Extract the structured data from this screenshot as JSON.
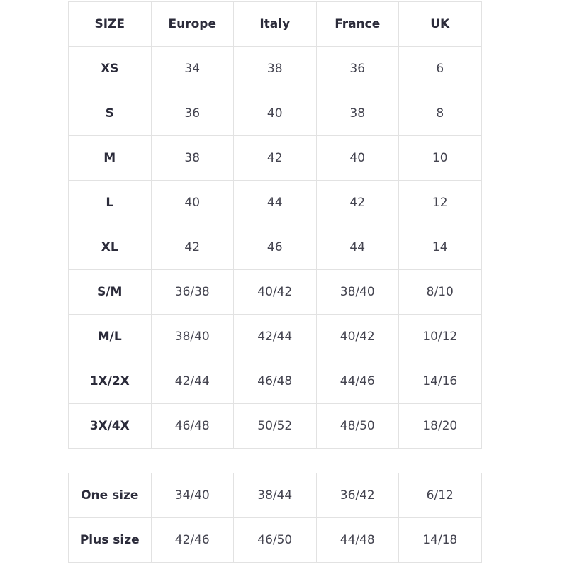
{
  "size_table": {
    "header": [
      "SIZE",
      "Europe",
      "Italy",
      "France",
      "UK"
    ],
    "rows": [
      [
        "XS",
        "34",
        "38",
        "36",
        "6"
      ],
      [
        "S",
        "36",
        "40",
        "38",
        "8"
      ],
      [
        "M",
        "38",
        "42",
        "40",
        "10"
      ],
      [
        "L",
        "40",
        "44",
        "42",
        "12"
      ],
      [
        "XL",
        "42",
        "46",
        "44",
        "14"
      ],
      [
        "S/M",
        "36/38",
        "40/42",
        "38/40",
        "8/10"
      ],
      [
        "M/L",
        "38/40",
        "42/44",
        "40/42",
        "10/12"
      ],
      [
        "1X/2X",
        "42/44",
        "46/48",
        "44/46",
        "14/16"
      ],
      [
        "3X/4X",
        "46/48",
        "50/52",
        "48/50",
        "18/20"
      ]
    ]
  },
  "special_table": {
    "rows": [
      [
        "One size",
        "34/40",
        "38/44",
        "36/42",
        "6/12"
      ],
      [
        "Plus size",
        "42/46",
        "46/50",
        "44/48",
        "14/18"
      ]
    ]
  }
}
